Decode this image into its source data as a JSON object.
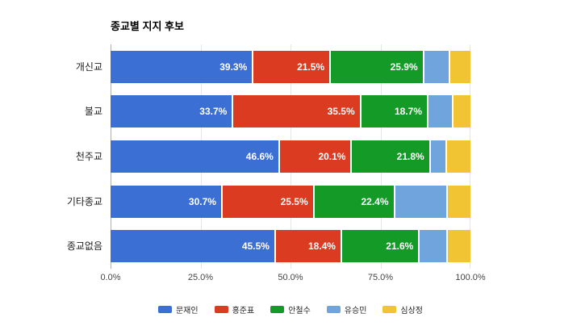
{
  "chart_data": {
    "type": "bar",
    "orientation": "horizontal",
    "stacked": true,
    "title": "종교별 지지 후보",
    "categories": [
      "개신교",
      "불교",
      "천주교",
      "기타종교",
      "종교없음"
    ],
    "series": [
      {
        "name": "문재인",
        "color": "#3B6FD4",
        "show_labels": true,
        "values": [
          39.3,
          33.7,
          46.6,
          30.7,
          45.5
        ]
      },
      {
        "name": "홍준표",
        "color": "#DB3B21",
        "show_labels": true,
        "values": [
          21.5,
          35.5,
          20.1,
          25.5,
          18.4
        ]
      },
      {
        "name": "안철수",
        "color": "#149B27",
        "show_labels": true,
        "values": [
          25.9,
          18.7,
          21.8,
          22.4,
          21.6
        ]
      },
      {
        "name": "유승민",
        "color": "#6FA4DC",
        "show_labels": false,
        "values": [
          7.3,
          6.9,
          4.6,
          14.6,
          7.7
        ]
      },
      {
        "name": "심상정",
        "color": "#F1C433",
        "show_labels": false,
        "values": [
          6.0,
          5.2,
          6.9,
          6.8,
          6.8
        ]
      }
    ],
    "x_ticks": [
      "0.0%",
      "25.0%",
      "50.0%",
      "75.0%",
      "100.0%"
    ],
    "xlim": [
      0,
      100
    ],
    "value_suffix": "%",
    "legend_position": "bottom",
    "grid": "vertical",
    "colors": {
      "background": "#ffffff",
      "gridline": "#e6e6e6",
      "axis_line": "#b0b0b0",
      "bar_value_text": "#ffffff",
      "tick_text": "#444444"
    }
  }
}
